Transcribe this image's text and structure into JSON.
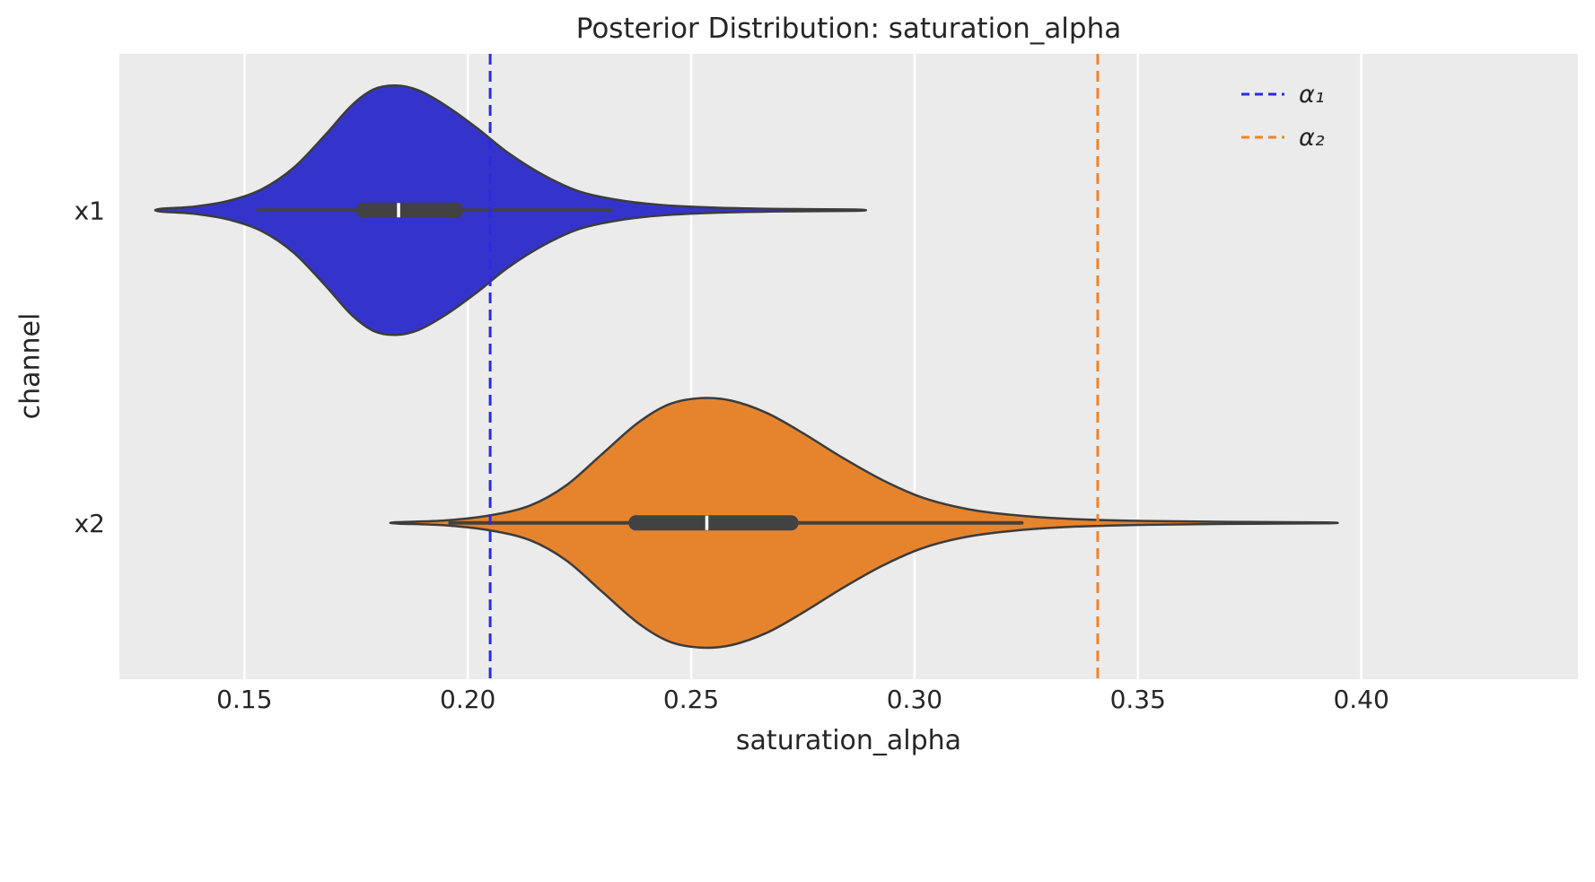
{
  "chart_data": {
    "type": "violin",
    "orientation": "horizontal",
    "title": "Posterior Distribution: saturation_alpha",
    "xlabel": "saturation_alpha",
    "ylabel": "channel",
    "xlim": [
      0.122,
      0.4485
    ],
    "xticks": [
      0.15,
      0.2,
      0.25,
      0.3,
      0.35,
      0.4
    ],
    "xtick_labels": [
      "0.15",
      "0.20",
      "0.25",
      "0.30",
      "0.35",
      "0.40"
    ],
    "categories": [
      "x1",
      "x2"
    ],
    "grid": {
      "vertical": true,
      "horizontal": false,
      "color": "#ffffff"
    },
    "panel_bg": "#ebebeb",
    "text_color": "#262626",
    "series": [
      {
        "category": "x1",
        "fill_color": "#3434cd",
        "edge_color": "#3c3c3c",
        "support": [
          0.131,
          0.287
        ],
        "density": [
          [
            0.131,
            0.01
          ],
          [
            0.139,
            0.03
          ],
          [
            0.147,
            0.08
          ],
          [
            0.154,
            0.17
          ],
          [
            0.161,
            0.34
          ],
          [
            0.168,
            0.6
          ],
          [
            0.174,
            0.84
          ],
          [
            0.179,
            0.97
          ],
          [
            0.184,
            1.0
          ],
          [
            0.189,
            0.96
          ],
          [
            0.195,
            0.84
          ],
          [
            0.202,
            0.66
          ],
          [
            0.209,
            0.46
          ],
          [
            0.217,
            0.28
          ],
          [
            0.225,
            0.15
          ],
          [
            0.234,
            0.08
          ],
          [
            0.244,
            0.04
          ],
          [
            0.256,
            0.02
          ],
          [
            0.27,
            0.01
          ],
          [
            0.287,
            0.005
          ]
        ],
        "box": {
          "whisker_low": 0.153,
          "q1": 0.175,
          "median": 0.1845,
          "q3": 0.199,
          "whisker_high": 0.232
        }
      },
      {
        "category": "x2",
        "fill_color": "#e6842e",
        "edge_color": "#3c3c3c",
        "support": [
          0.184,
          0.392
        ],
        "density": [
          [
            0.184,
            0.005
          ],
          [
            0.195,
            0.02
          ],
          [
            0.205,
            0.06
          ],
          [
            0.214,
            0.14
          ],
          [
            0.222,
            0.3
          ],
          [
            0.23,
            0.55
          ],
          [
            0.238,
            0.8
          ],
          [
            0.245,
            0.95
          ],
          [
            0.252,
            1.0
          ],
          [
            0.259,
            0.98
          ],
          [
            0.267,
            0.88
          ],
          [
            0.275,
            0.72
          ],
          [
            0.284,
            0.52
          ],
          [
            0.293,
            0.34
          ],
          [
            0.302,
            0.2
          ],
          [
            0.312,
            0.11
          ],
          [
            0.323,
            0.06
          ],
          [
            0.336,
            0.03
          ],
          [
            0.352,
            0.015
          ],
          [
            0.37,
            0.008
          ],
          [
            0.392,
            0.004
          ]
        ],
        "box": {
          "whisker_low": 0.196,
          "q1": 0.236,
          "median": 0.2535,
          "q3": 0.274,
          "whisker_high": 0.324
        }
      }
    ],
    "reference_lines": [
      {
        "label": "α₁",
        "value": 0.205,
        "color": "#2b2bdf",
        "style": "dashed"
      },
      {
        "label": "α₂",
        "value": 0.341,
        "color": "#f08426",
        "style": "dashed"
      }
    ],
    "legend": {
      "position": "upper right",
      "entries": [
        {
          "label": "α₁",
          "color": "#2b2bdf",
          "line": "dashed"
        },
        {
          "label": "α₂",
          "color": "#f08426",
          "line": "dashed"
        }
      ]
    },
    "inner_box_style": {
      "bar_color": "#424242",
      "median_color": "#ffffff"
    }
  }
}
